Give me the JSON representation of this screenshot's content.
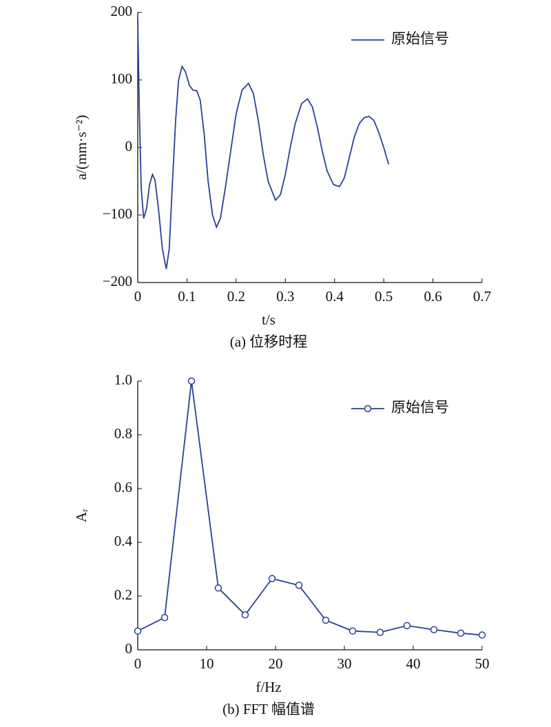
{
  "chart_data": [
    {
      "type": "line",
      "xlabel": "t/s",
      "ylabel": "a/(mm·s⁻²)",
      "caption": "(a) 位移时程",
      "xlim": [
        0,
        0.7
      ],
      "ylim": [
        -200,
        200
      ],
      "xticks": [
        0,
        0.1,
        0.2,
        0.3,
        0.4,
        0.5,
        0.6,
        0.7
      ],
      "yticks": [
        {
          "value": -200,
          "label": "−200"
        },
        {
          "value": -100,
          "label": "−100"
        },
        0,
        100,
        200
      ],
      "legend": "upper right",
      "series": [
        {
          "name": "原始信号",
          "color": "#2b3f94",
          "marker": "none",
          "x": [
            0,
            0.003,
            0.007,
            0.012,
            0.018,
            0.024,
            0.03,
            0.035,
            0.042,
            0.05,
            0.058,
            0.064,
            0.07,
            0.077,
            0.083,
            0.09,
            0.097,
            0.105,
            0.112,
            0.12,
            0.127,
            0.135,
            0.143,
            0.152,
            0.16,
            0.168,
            0.178,
            0.19,
            0.2,
            0.212,
            0.225,
            0.235,
            0.245,
            0.255,
            0.265,
            0.28,
            0.29,
            0.3,
            0.31,
            0.32,
            0.333,
            0.345,
            0.355,
            0.365,
            0.375,
            0.385,
            0.398,
            0.41,
            0.42,
            0.43,
            0.44,
            0.45,
            0.46,
            0.47,
            0.48,
            0.49,
            0.5,
            0.51
          ],
          "values": [
            190,
            60,
            -60,
            -105,
            -90,
            -55,
            -40,
            -48,
            -90,
            -150,
            -180,
            -150,
            -60,
            40,
            100,
            120,
            112,
            92,
            85,
            84,
            70,
            20,
            -50,
            -100,
            -118,
            -105,
            -60,
            0,
            50,
            85,
            95,
            80,
            40,
            -10,
            -50,
            -78,
            -70,
            -40,
            0,
            35,
            65,
            72,
            60,
            30,
            -5,
            -35,
            -55,
            -58,
            -45,
            -15,
            15,
            35,
            44,
            46,
            40,
            22,
            0,
            -25
          ]
        }
      ]
    },
    {
      "type": "line",
      "xlabel": "f/Hz",
      "ylabel": "Aᵣ",
      "caption": "(b) FFT 幅值谱",
      "xlim": [
        0,
        50
      ],
      "ylim": [
        0,
        1
      ],
      "xticks": [
        0,
        10,
        20,
        30,
        40,
        50
      ],
      "yticks": [
        0,
        0.2,
        0.4,
        0.6,
        0.8,
        {
          "value": 1,
          "label": "1.0"
        }
      ],
      "legend": "upper right",
      "series": [
        {
          "name": "原始信号",
          "color": "#2b3f94",
          "marker": "circle",
          "x": [
            0,
            3.9,
            7.8,
            11.7,
            15.6,
            19.5,
            23.4,
            27.3,
            31.2,
            35.2,
            39.1,
            43,
            46.9,
            50
          ],
          "values": [
            0.07,
            0.12,
            1.0,
            0.23,
            0.13,
            0.265,
            0.24,
            0.11,
            0.07,
            0.065,
            0.09,
            0.075,
            0.062,
            0.055
          ]
        }
      ]
    }
  ]
}
